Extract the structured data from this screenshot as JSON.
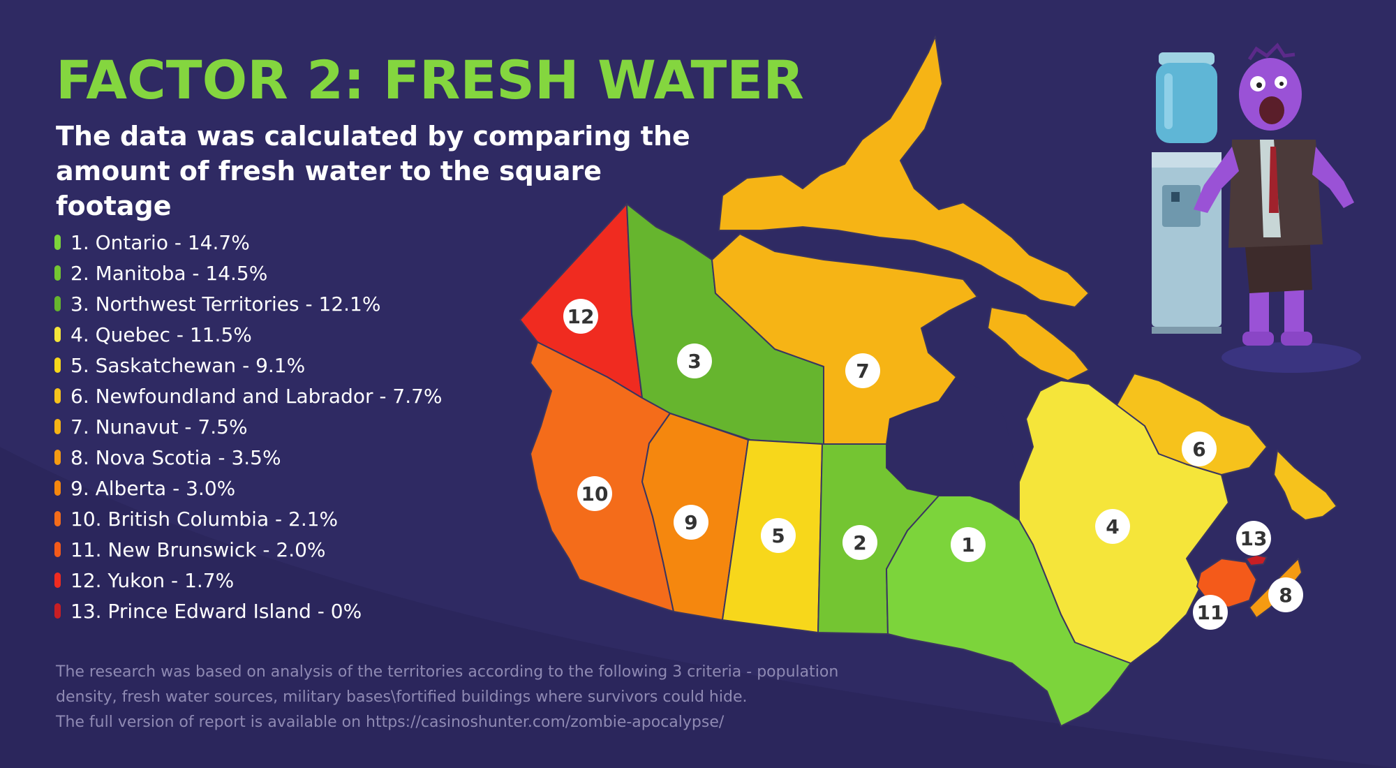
{
  "title": "FACTOR 2: FRESH WATER",
  "subtitle": "The data was calculated by comparing the amount of fresh water to the square footage",
  "legend": [
    {
      "text": "1. Ontario - 14.7%",
      "color": "#7cd43b"
    },
    {
      "text": "2. Manitoba - 14.5%",
      "color": "#74c532"
    },
    {
      "text": "3. Northwest Territories - 12.1%",
      "color": "#66b52e"
    },
    {
      "text": "4. Quebec - 11.5%",
      "color": "#f5e53a"
    },
    {
      "text": "5. Saskatchewan - 9.1%",
      "color": "#f7d71b"
    },
    {
      "text": "6. Newfoundland and Labrador - 7.7%",
      "color": "#f6c21c"
    },
    {
      "text": "7. Nunavut - 7.5%",
      "color": "#f6b415"
    },
    {
      "text": "8. Nova Scotia - 3.5%",
      "color": "#f59b12"
    },
    {
      "text": "9. Alberta - 3.0%",
      "color": "#f5870e"
    },
    {
      "text": "10. British Columbia - 2.1%",
      "color": "#f46c1a"
    },
    {
      "text": "11. New Brunswick - 2.0%",
      "color": "#f45a1a"
    },
    {
      "text": "12. Yukon - 1.7%",
      "color": "#f02b20"
    },
    {
      "text": "13. Prince Edward Island - 0%",
      "color": "#c81e24"
    }
  ],
  "map_labels": [
    "1",
    "2",
    "3",
    "4",
    "5",
    "6",
    "7",
    "8",
    "9",
    "10",
    "11",
    "12",
    "13"
  ],
  "footer": {
    "line1": "The research was based on analysis of the territories according to the following 3 criteria - population",
    "line2": "density, fresh water sources, military bases\\fortified buildings where survivors could hide.",
    "line3": "The full version of report is available on https://casinoshunter.com/zombie-apocalypse/"
  },
  "colors": {
    "background": "#2f2a63",
    "title": "#84d63f",
    "water": "#2f2a63"
  }
}
